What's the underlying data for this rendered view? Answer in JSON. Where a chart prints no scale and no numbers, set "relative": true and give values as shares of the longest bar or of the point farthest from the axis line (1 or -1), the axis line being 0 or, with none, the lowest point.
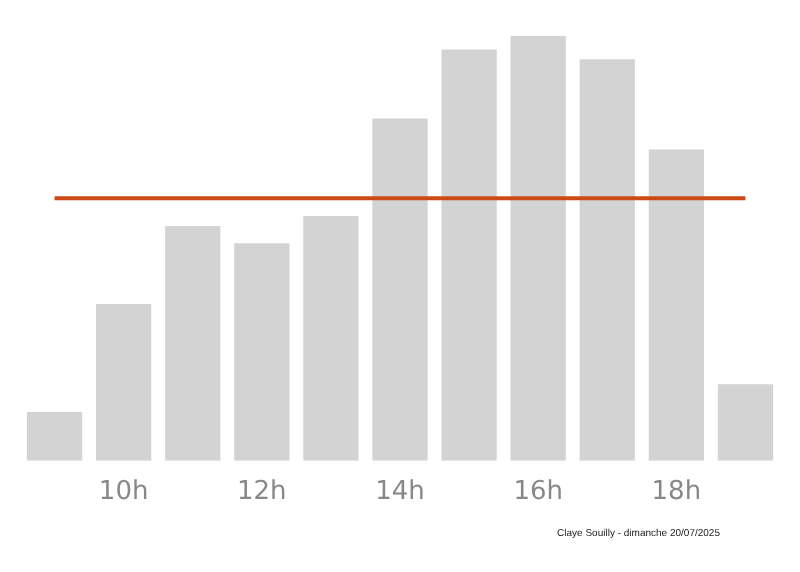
{
  "chart_data": {
    "type": "bar",
    "relative": true,
    "categories": [
      null,
      "10h",
      null,
      "12h",
      null,
      "14h",
      null,
      "16h",
      null,
      "18h",
      null
    ],
    "values": [
      0.115,
      0.369,
      0.553,
      0.512,
      0.576,
      0.806,
      0.968,
      1,
      0.945,
      0.733,
      0.18
    ],
    "color": "#d3d3d3",
    "ref_lines": [
      {
        "axis": "y",
        "value": 0.618,
        "color": "#cc4a14"
      }
    ],
    "annotations": [
      "Claye Souilly - dimanche 20/07/2025"
    ],
    "grid": false,
    "legend": false
  }
}
